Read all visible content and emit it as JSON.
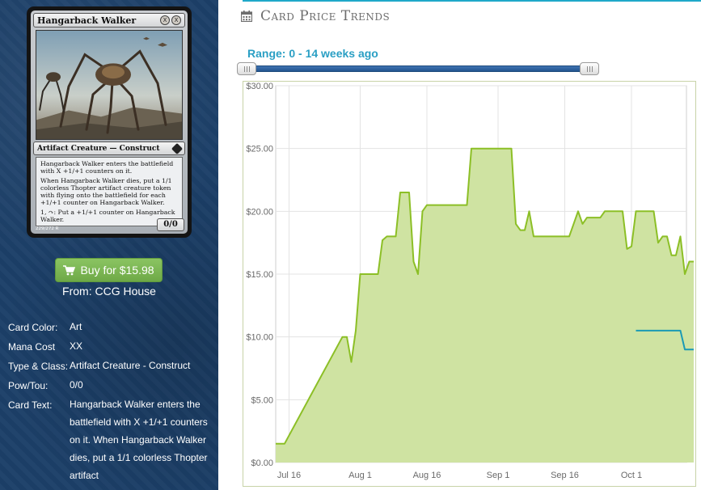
{
  "card": {
    "name": "Hangarback Walker",
    "cost_symbols": [
      "X",
      "X"
    ],
    "type_line": "Artifact Creature — Construct",
    "rules_paragraphs": [
      "Hangarback Walker enters the battlefield with X +1/+1 counters on it.",
      "When Hangarback Walker dies, put a 1/1 colorless Thopter artifact creature token with flying onto the battlefield for each +1/+1 counter on Hangarback Walker.",
      "1, ↷: Put a +1/+1 counter on Hangarback Walker."
    ],
    "power_toughness": "0/0",
    "collector": "229/272 R"
  },
  "buy": {
    "label": "Buy for $15.98",
    "icon": "shopping-cart-icon",
    "from": "From: CCG House",
    "color": "#7cb955"
  },
  "details": [
    {
      "label": "Card Color:",
      "value": "Art"
    },
    {
      "label": "Mana Cost",
      "value": "XX"
    },
    {
      "label": "Type & Class:",
      "value": "Artifact Creature - Construct"
    },
    {
      "label": "Pow/Tou:",
      "value": "0/0"
    },
    {
      "label": "Card Text:",
      "value": "Hangarback Walker enters the battlefield with X +1/+1 counters on it. When Hangarback Walker dies, put a 1/1 colorless Thopter artifact"
    }
  ],
  "section": {
    "title": "Card Price Trends",
    "icon": "calendar-icon"
  },
  "range": {
    "label": "Range: 0 - 14 weeks ago",
    "start_weeks": 0,
    "end_weeks": 14
  },
  "colors": {
    "sidebar_bg": "#1c3f68",
    "accent": "#1fa8c9",
    "range_text": "#2a9fc4",
    "series_fill": "#cfe3a2",
    "series_line": "#8cbf26",
    "series_line_2": "#1b9ab5"
  },
  "chart_data": {
    "type": "area",
    "x_axis_type": "date",
    "xlim": [
      "2015-07-13",
      "2015-10-12"
    ],
    "ylim": [
      0,
      30
    ],
    "y_tick_values": [
      0,
      5,
      10,
      15,
      20,
      25,
      30
    ],
    "y_tick_labels": [
      "$0.00",
      "$5.00",
      "$10.00",
      "$15.00",
      "$20.00",
      "$25.00",
      "$30.00"
    ],
    "x_tick_values": [
      "2015-07-16",
      "2015-08-01",
      "2015-08-16",
      "2015-09-01",
      "2015-09-16",
      "2015-10-01"
    ],
    "x_tick_labels": [
      "Jul 16",
      "Aug 1",
      "Aug 16",
      "Sep 1",
      "Sep 16",
      "Oct 1"
    ],
    "grid": true,
    "series": [
      {
        "style": "area",
        "color": "#8cbf26",
        "points": [
          [
            "2015-07-13",
            1.5
          ],
          [
            "2015-07-15",
            1.5
          ],
          [
            "2015-07-28",
            10.0
          ],
          [
            "2015-07-29",
            10.0
          ],
          [
            "2015-07-30",
            8.0
          ],
          [
            "2015-07-31",
            10.5
          ],
          [
            "2015-08-01",
            15.0
          ],
          [
            "2015-08-05",
            15.0
          ],
          [
            "2015-08-06",
            17.7
          ],
          [
            "2015-08-07",
            18.0
          ],
          [
            "2015-08-09",
            18.0
          ],
          [
            "2015-08-10",
            21.5
          ],
          [
            "2015-08-12",
            21.5
          ],
          [
            "2015-08-13",
            16.0
          ],
          [
            "2015-08-14",
            15.0
          ],
          [
            "2015-08-15",
            20.0
          ],
          [
            "2015-08-16",
            20.5
          ],
          [
            "2015-08-25",
            20.5
          ],
          [
            "2015-08-26",
            25.0
          ],
          [
            "2015-09-04",
            25.0
          ],
          [
            "2015-09-05",
            19.0
          ],
          [
            "2015-09-06",
            18.5
          ],
          [
            "2015-09-07",
            18.5
          ],
          [
            "2015-09-08",
            20.0
          ],
          [
            "2015-09-09",
            18.0
          ],
          [
            "2015-09-17",
            18.0
          ],
          [
            "2015-09-19",
            20.0
          ],
          [
            "2015-09-20",
            19.0
          ],
          [
            "2015-09-21",
            19.5
          ],
          [
            "2015-09-24",
            19.5
          ],
          [
            "2015-09-25",
            20.0
          ],
          [
            "2015-09-29",
            20.0
          ],
          [
            "2015-09-30",
            17.0
          ],
          [
            "2015-10-01",
            17.2
          ],
          [
            "2015-10-02",
            20.0
          ],
          [
            "2015-10-06",
            20.0
          ],
          [
            "2015-10-07",
            17.5
          ],
          [
            "2015-10-08",
            18.0
          ],
          [
            "2015-10-09",
            18.0
          ],
          [
            "2015-10-10",
            16.5
          ],
          [
            "2015-10-11",
            16.5
          ],
          [
            "2015-10-12",
            18.0
          ],
          [
            "2015-10-13",
            15.0
          ],
          [
            "2015-10-14",
            16.0
          ],
          [
            "2015-10-15",
            16.0
          ]
        ]
      },
      {
        "style": "line",
        "color": "#1b9ab5",
        "points": [
          [
            "2015-10-02",
            10.5
          ],
          [
            "2015-10-12",
            10.5
          ],
          [
            "2015-10-13",
            9.0
          ],
          [
            "2015-10-15",
            9.0
          ]
        ]
      }
    ]
  }
}
